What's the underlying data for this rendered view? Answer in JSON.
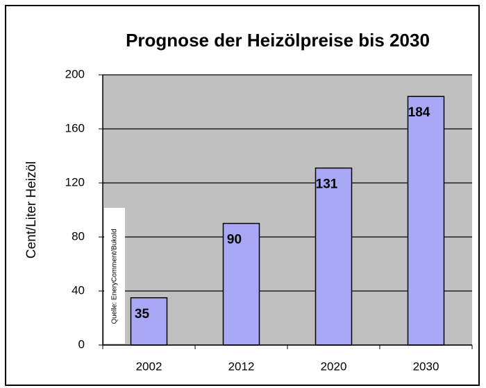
{
  "chart_data": {
    "type": "bar",
    "title": "Prognose der Heizölpreise bis 2030",
    "y_label": "Cent/Liter Heizöl",
    "source": "Quelle: EneryComment/Bukold",
    "categories": [
      "2002",
      "2012",
      "2020",
      "2030"
    ],
    "values": [
      35,
      90,
      131,
      184
    ],
    "color": "#a8a8f5",
    "ylim": [
      0,
      200
    ],
    "yticks": [
      0,
      40,
      80,
      120,
      160,
      200
    ],
    "grid": true
  }
}
